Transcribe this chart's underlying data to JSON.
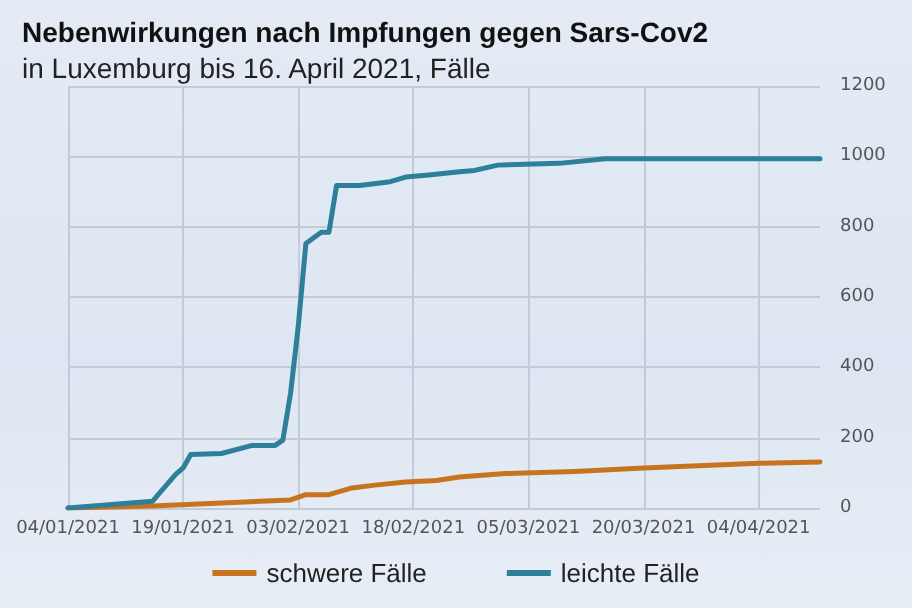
{
  "chart_data": {
    "type": "line",
    "title": "Nebenwirkungen nach Impfungen gegen Sars-Cov2",
    "subtitle": "in Luxemburg bis 16. April 2021, Fälle",
    "series": [
      {
        "name": "schwere Fälle",
        "color": "#c8741f",
        "x": [
          "2021-01-04",
          "2021-01-15",
          "2021-02-02",
          "2021-02-04",
          "2021-02-07",
          "2021-02-10",
          "2021-02-13",
          "2021-02-17",
          "2021-02-21",
          "2021-02-24",
          "2021-03-02",
          "2021-03-11",
          "2021-03-20",
          "2021-04-04",
          "2021-04-12"
        ],
        "values": [
          0,
          6,
          23,
          38,
          38,
          57,
          65,
          74,
          78,
          88,
          98,
          104,
          114,
          127,
          131
        ]
      },
      {
        "name": "leichte Fälle",
        "color": "#2e7f9a",
        "x": [
          "2021-01-04",
          "2021-01-15",
          "2021-01-18",
          "2021-01-19",
          "2021-01-20",
          "2021-01-24",
          "2021-01-28",
          "2021-01-31",
          "2021-02-01",
          "2021-02-02",
          "2021-02-03",
          "2021-02-04",
          "2021-02-06",
          "2021-02-07",
          "2021-02-08",
          "2021-02-11",
          "2021-02-15",
          "2021-02-17",
          "2021-02-20",
          "2021-02-24",
          "2021-02-26",
          "2021-03-01",
          "2021-03-09",
          "2021-03-15",
          "2021-04-12"
        ],
        "values": [
          0,
          19,
          95,
          114,
          152,
          155,
          178,
          178,
          193,
          326,
          515,
          752,
          784,
          784,
          917,
          917,
          928,
          941,
          947,
          956,
          960,
          975,
          980,
          993,
          993
        ]
      }
    ],
    "xlim": [
      "2021-01-04",
      "2021-04-12"
    ],
    "xticks": [
      {
        "value": "2021-01-04",
        "label": "04/01/2021"
      },
      {
        "value": "2021-01-19",
        "label": "19/01/2021"
      },
      {
        "value": "2021-02-03",
        "label": "03/02/2021"
      },
      {
        "value": "2021-02-18",
        "label": "18/02/2021"
      },
      {
        "value": "2021-03-05",
        "label": "05/03/2021"
      },
      {
        "value": "2021-03-20",
        "label": "20/03/2021"
      },
      {
        "value": "2021-04-04",
        "label": "04/04/2021"
      }
    ],
    "ylim": [
      0,
      1200
    ],
    "yticks": [
      0,
      200,
      400,
      600,
      800,
      1000,
      1200
    ],
    "grid": true,
    "legend": "bottom",
    "marker": "none",
    "line_style": "solid"
  }
}
